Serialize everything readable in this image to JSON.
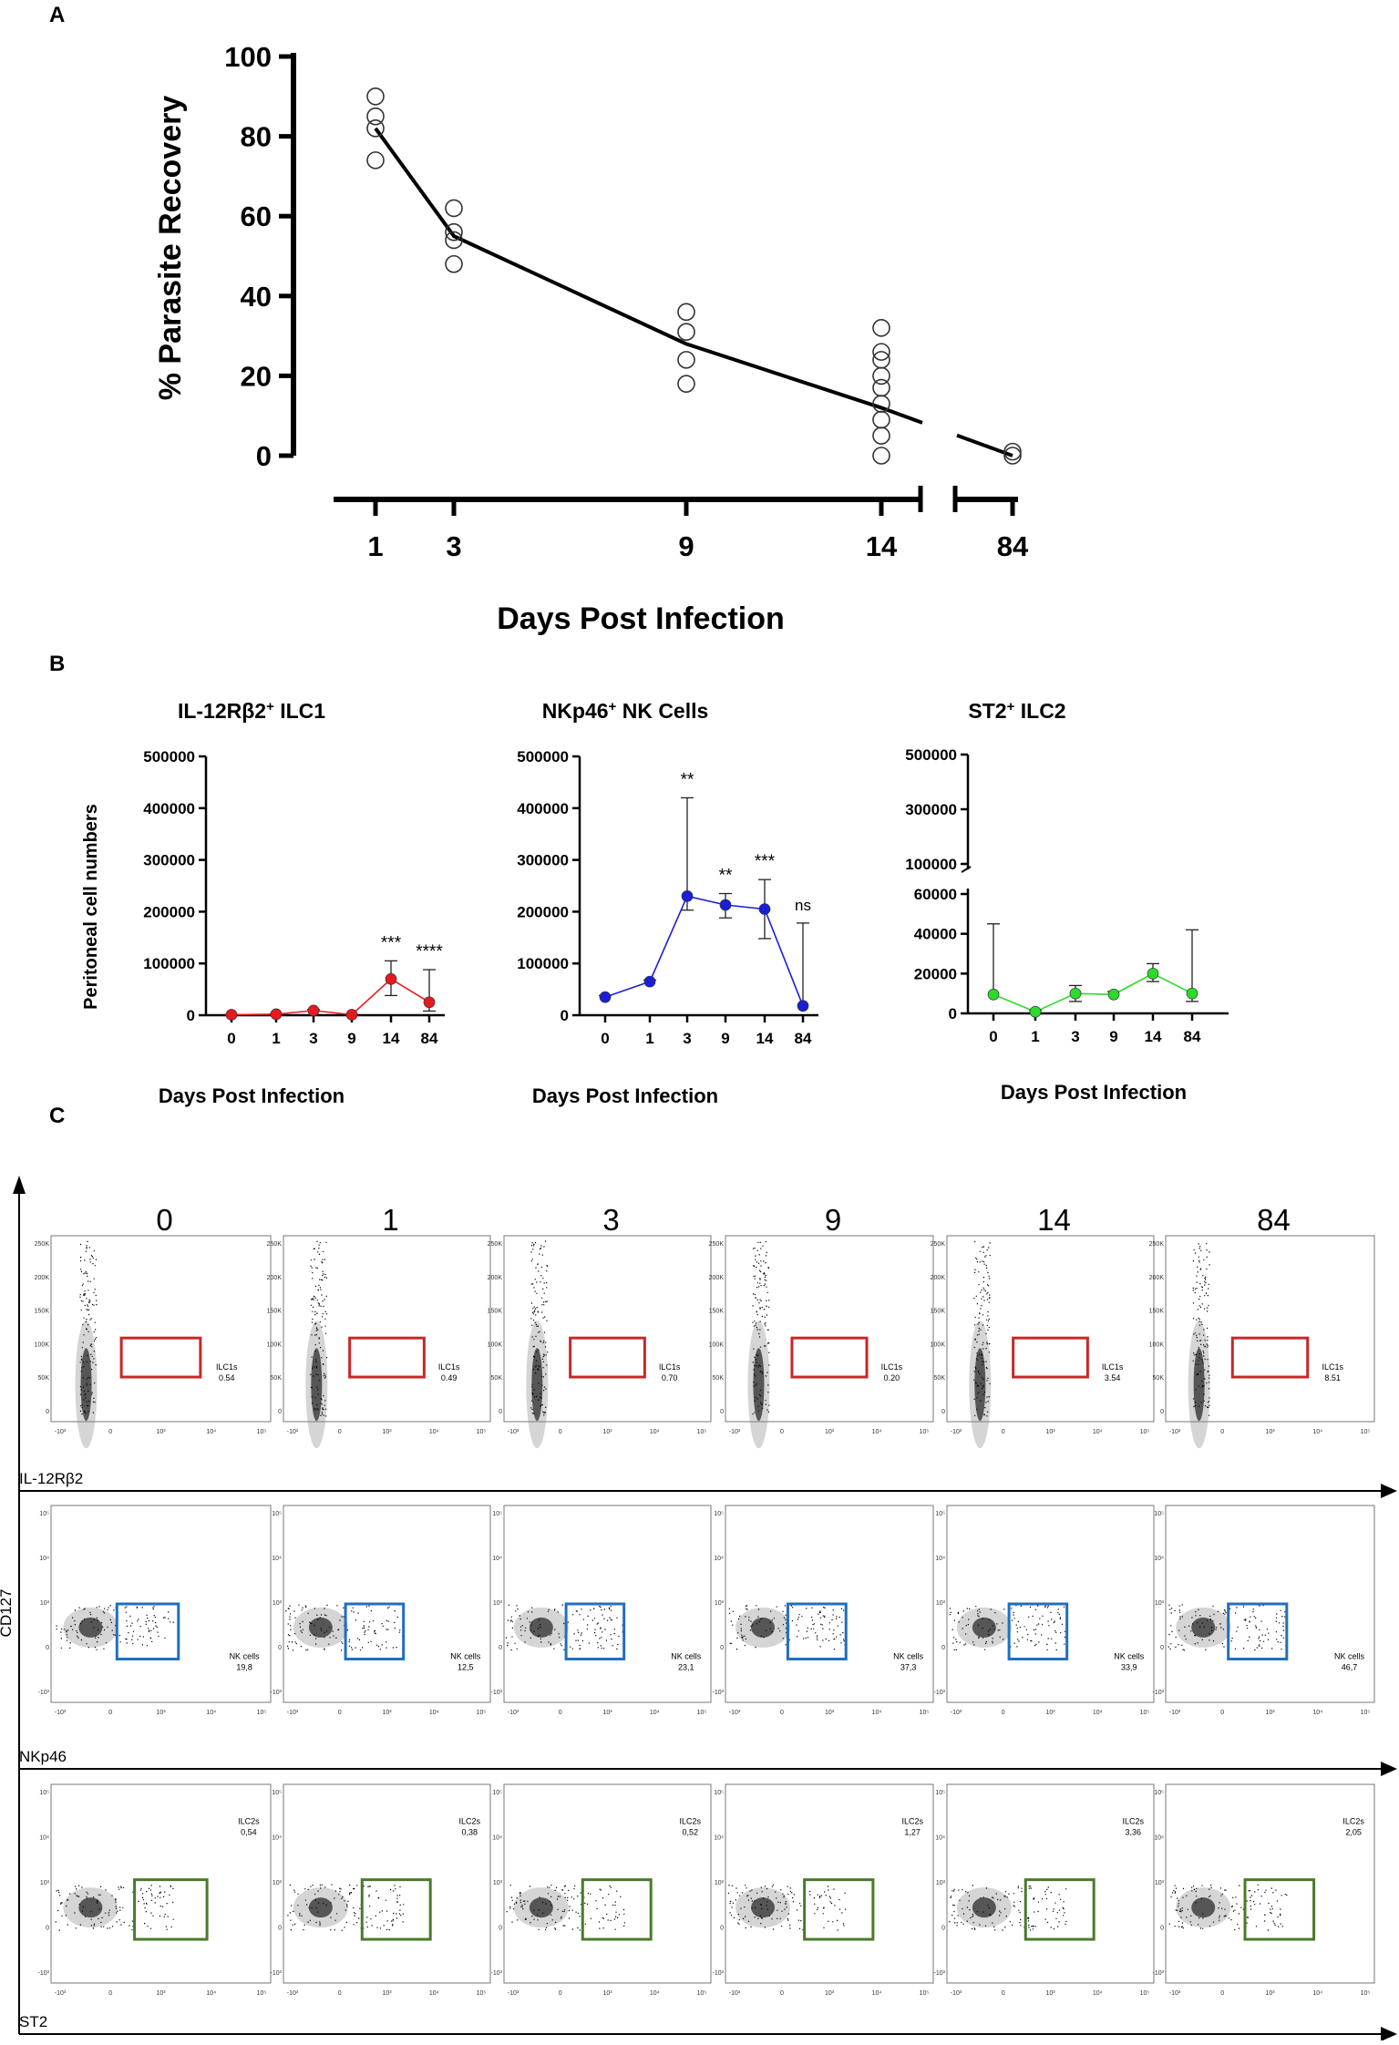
{
  "panels": {
    "a": "A",
    "b": "B",
    "c": "C"
  },
  "chart_data": [
    {
      "id": "A",
      "type": "scatter",
      "title": "",
      "xlabel": "Days Post Infection",
      "ylabel": "% Parasite Recovery",
      "x_ticks": [
        "1",
        "3",
        "9",
        "14",
        "84"
      ],
      "y_ticks": [
        "0",
        "20",
        "40",
        "60",
        "80",
        "100"
      ],
      "ylim": [
        0,
        100
      ],
      "points": [
        {
          "day": "1",
          "values": [
            90,
            85,
            82,
            74
          ]
        },
        {
          "day": "3",
          "values": [
            62,
            56,
            54,
            48
          ]
        },
        {
          "day": "9",
          "values": [
            36,
            31,
            24,
            18
          ]
        },
        {
          "day": "14",
          "values": [
            32,
            26,
            24,
            20,
            17,
            13,
            9,
            5,
            0
          ]
        },
        {
          "day": "84",
          "values": [
            1,
            0
          ]
        }
      ],
      "mean_line": [
        {
          "day": "1",
          "value": 82
        },
        {
          "day": "3",
          "value": 55
        },
        {
          "day": "9",
          "value": 28
        },
        {
          "day": "14",
          "value": 12
        },
        {
          "day": "84",
          "value": 0
        }
      ]
    },
    {
      "id": "B1",
      "type": "line",
      "title": "IL-12Rβ2",
      "title_sup": "+",
      "title_suffix": " ILC1",
      "color": "#e8191f",
      "xlabel": "Days Post Infection",
      "ylabel": "Peritoneal cell numbers",
      "categories": [
        "0",
        "1",
        "3",
        "9",
        "14",
        "84"
      ],
      "values": [
        1000,
        2000,
        9000,
        1000,
        70000,
        25000
      ],
      "error_upper": [
        1500,
        3000,
        11000,
        1500,
        105000,
        88000
      ],
      "error_lower": [
        null,
        null,
        null,
        null,
        38000,
        8000
      ],
      "annotations": [
        "",
        "",
        "",
        "",
        "***",
        "****"
      ],
      "y_ticks": [
        "0",
        "100000",
        "200000",
        "300000",
        "400000",
        "500000"
      ],
      "ylim": [
        0,
        500000
      ]
    },
    {
      "id": "B2",
      "type": "line",
      "title": "NKp46",
      "title_sup": "+",
      "title_suffix": " NK Cells",
      "color": "#1a1ed6",
      "xlabel": "Days Post Infection",
      "categories": [
        "0",
        "1",
        "3",
        "9",
        "14",
        "84"
      ],
      "values": [
        35000,
        65000,
        230000,
        213000,
        205000,
        18000
      ],
      "error_upper": [
        38000,
        68000,
        420000,
        235000,
        262000,
        178000
      ],
      "error_lower": [
        null,
        null,
        203000,
        188000,
        148000,
        null
      ],
      "annotations": [
        "",
        "",
        "**",
        "**",
        "***",
        "ns"
      ],
      "y_ticks": [
        "0",
        "100000",
        "200000",
        "300000",
        "400000",
        "500000"
      ],
      "ylim": [
        0,
        500000
      ]
    },
    {
      "id": "B3",
      "type": "line",
      "title": "ST2",
      "title_sup": "+",
      "title_suffix": " ILC2",
      "color": "#2bdb2b",
      "xlabel": "Days Post Infection",
      "categories": [
        "0",
        "1",
        "3",
        "9",
        "14",
        "84"
      ],
      "values": [
        9500,
        800,
        10000,
        9500,
        20000,
        10000
      ],
      "error_upper": [
        45000,
        1500,
        14000,
        11000,
        25000,
        42000
      ],
      "error_lower": [
        null,
        null,
        6000,
        null,
        16000,
        6000
      ],
      "y_ticks_lower": [
        "0",
        "20000",
        "40000",
        "60000"
      ],
      "y_ticks_upper": [
        "100000",
        "300000",
        "500000"
      ],
      "ylim": [
        0,
        500000
      ],
      "axis_break": [
        60000,
        100000
      ]
    }
  ],
  "flow": {
    "timepoints": [
      "0",
      "1",
      "3",
      "9",
      "14",
      "84"
    ],
    "y_axis_label": "CD127",
    "rows": [
      {
        "x_label": "IL-12Rβ2",
        "gate_color": "#c62828",
        "gate_name": "ILC1s",
        "values": [
          "0.54",
          "0.49",
          "0.70",
          "0.20",
          "3.54",
          "8.51"
        ],
        "y_ticks": [
          "250K",
          "200K",
          "150K",
          "100K",
          "50K",
          "0"
        ]
      },
      {
        "x_label": "NKp46",
        "gate_color": "#1f6fc0",
        "gate_name": "NK cells",
        "values": [
          "19,8",
          "12,5",
          "23,1",
          "37,3",
          "33,9",
          "46,7"
        ],
        "y_ticks": [
          "10⁵",
          "10⁴",
          "10³",
          "0",
          "-10³"
        ]
      },
      {
        "x_label": "ST2",
        "gate_color": "#4a7a2c",
        "gate_name": "ILC2s",
        "values": [
          "0,54",
          "0,38",
          "0,52",
          "1,27",
          "3,36",
          "2,05"
        ],
        "y_ticks": [
          "10⁵",
          "10⁴",
          "10³",
          "0",
          "-10³"
        ]
      }
    ],
    "x_ticks": [
      "-10³",
      "0",
      "10³",
      "10⁴",
      "10⁵"
    ]
  }
}
